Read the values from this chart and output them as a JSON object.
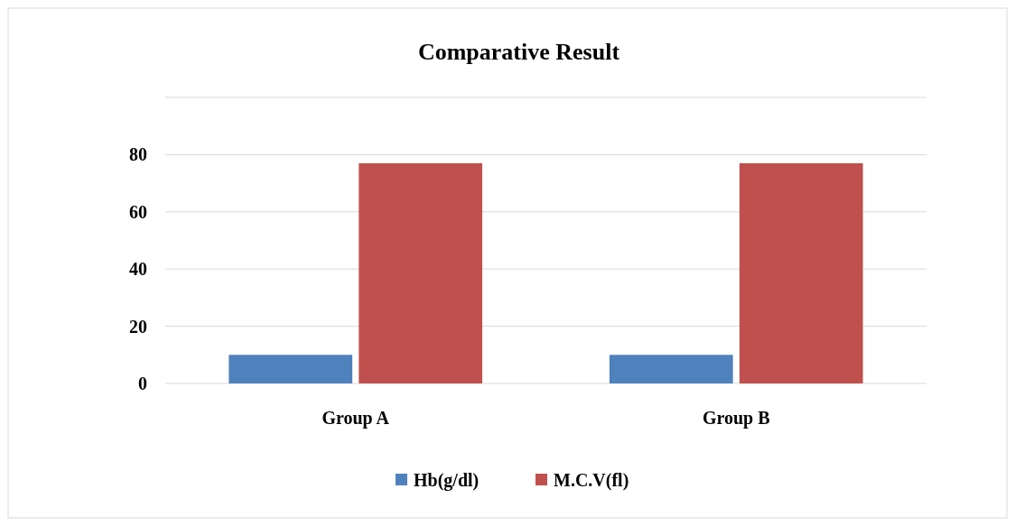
{
  "chart_data": {
    "type": "bar",
    "title": "Comparative Result",
    "categories": [
      "Group A",
      "Group B"
    ],
    "series": [
      {
        "name": "Hb(g/dl)",
        "color": "#4f81bd",
        "values": [
          10,
          10
        ]
      },
      {
        "name": "M.C.V(fl)",
        "color": "#c0504d",
        "values": [
          77,
          77
        ]
      }
    ],
    "ylim": [
      0,
      100
    ],
    "yticks": [
      0,
      20,
      40,
      60,
      80
    ],
    "grid": "y",
    "legend": "bottom"
  }
}
